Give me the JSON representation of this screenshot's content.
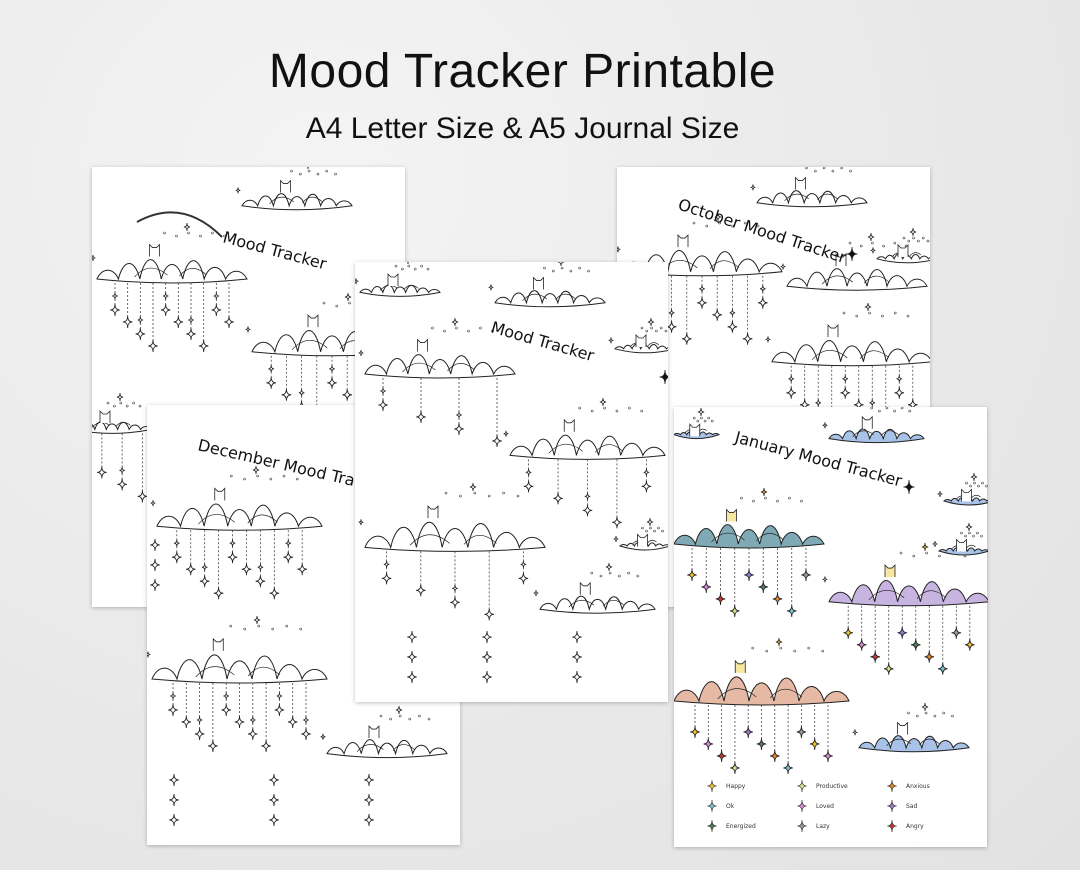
{
  "header": {
    "title": "Mood Tracker Printable",
    "subtitle": "A4 Letter Size & A5 Journal Size"
  },
  "pages": [
    {
      "heading": "Mood Tracker"
    },
    {
      "heading": "October Mood Tracker"
    },
    {
      "heading": "December Mood Tracker"
    },
    {
      "heading": "Mood Tracker"
    },
    {
      "heading": "January Mood Tracker"
    }
  ],
  "legend": [
    {
      "label": "Happy",
      "color": "#f2c12e"
    },
    {
      "label": "Ok",
      "color": "#7cc3d6"
    },
    {
      "label": "Energized",
      "color": "#4f7f5a"
    },
    {
      "label": "Productive",
      "color": "#dbe68a"
    },
    {
      "label": "Loved",
      "color": "#d98ad6"
    },
    {
      "label": "Lazy",
      "color": "#9a9a9a"
    },
    {
      "label": "Anxious",
      "color": "#e8832c"
    },
    {
      "label": "Sad",
      "color": "#9b79d4"
    },
    {
      "label": "Angry",
      "color": "#c8382c"
    }
  ]
}
